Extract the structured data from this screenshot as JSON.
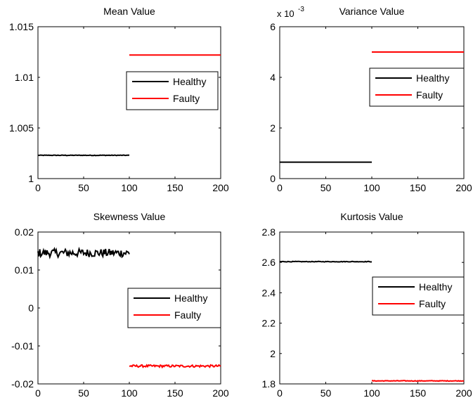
{
  "chart_data": [
    {
      "type": "line",
      "title": "Mean Value",
      "xlim": [
        0,
        200
      ],
      "ylim": [
        1.0,
        1.015
      ],
      "xticks": [
        "0",
        "50",
        "100",
        "150",
        "200"
      ],
      "yticks": [
        "1",
        "1.005",
        "1.01",
        "1.015"
      ],
      "exponent_label": "",
      "grid": false,
      "legend_position": "middle-right",
      "series": [
        {
          "name": "Healthy",
          "color": "#000000",
          "x_range": [
            0,
            100
          ],
          "level": 1.0023,
          "noise": 3e-05
        },
        {
          "name": "Faulty",
          "color": "#ff0000",
          "x_range": [
            100,
            200
          ],
          "level": 1.0122,
          "noise": 0.0
        }
      ]
    },
    {
      "type": "line",
      "title": "Variance Value",
      "xlim": [
        0,
        200
      ],
      "ylim": [
        0,
        6
      ],
      "xticks": [
        "0",
        "50",
        "100",
        "150",
        "200"
      ],
      "yticks": [
        "0",
        "2",
        "4",
        "6"
      ],
      "exponent_label": "x 10",
      "exponent_power": "-3",
      "grid": false,
      "legend_position": "middle-right",
      "series": [
        {
          "name": "Healthy",
          "color": "#000000",
          "x_range": [
            0,
            100
          ],
          "level": 0.65,
          "noise": 0.0
        },
        {
          "name": "Faulty",
          "color": "#ff0000",
          "x_range": [
            100,
            200
          ],
          "level": 5.0,
          "noise": 0.0
        }
      ]
    },
    {
      "type": "line",
      "title": "Skewness Value",
      "xlim": [
        0,
        200
      ],
      "ylim": [
        -0.02,
        0.02
      ],
      "xticks": [
        "0",
        "50",
        "100",
        "150",
        "200"
      ],
      "yticks": [
        "-0.02",
        "-0.01",
        "0",
        "0.01",
        "0.02"
      ],
      "exponent_label": "",
      "grid": false,
      "legend_position": "middle-right",
      "series": [
        {
          "name": "Healthy",
          "color": "#000000",
          "x_range": [
            0,
            100
          ],
          "level": 0.0145,
          "noise": 0.0011
        },
        {
          "name": "Faulty",
          "color": "#ff0000",
          "x_range": [
            100,
            200
          ],
          "level": -0.0153,
          "noise": 0.0003
        }
      ]
    },
    {
      "type": "line",
      "title": "Kurtosis Value",
      "xlim": [
        0,
        200
      ],
      "ylim": [
        1.8,
        2.8
      ],
      "xticks": [
        "0",
        "50",
        "100",
        "150",
        "200"
      ],
      "yticks": [
        "1.8",
        "2",
        "2.2",
        "2.4",
        "2.6",
        "2.8"
      ],
      "exponent_label": "",
      "grid": false,
      "legend_position": "middle-right",
      "series": [
        {
          "name": "Healthy",
          "color": "#000000",
          "x_range": [
            0,
            100
          ],
          "level": 2.605,
          "noise": 0.002
        },
        {
          "name": "Faulty",
          "color": "#ff0000",
          "x_range": [
            100,
            200
          ],
          "level": 1.82,
          "noise": 0.002
        }
      ]
    }
  ]
}
